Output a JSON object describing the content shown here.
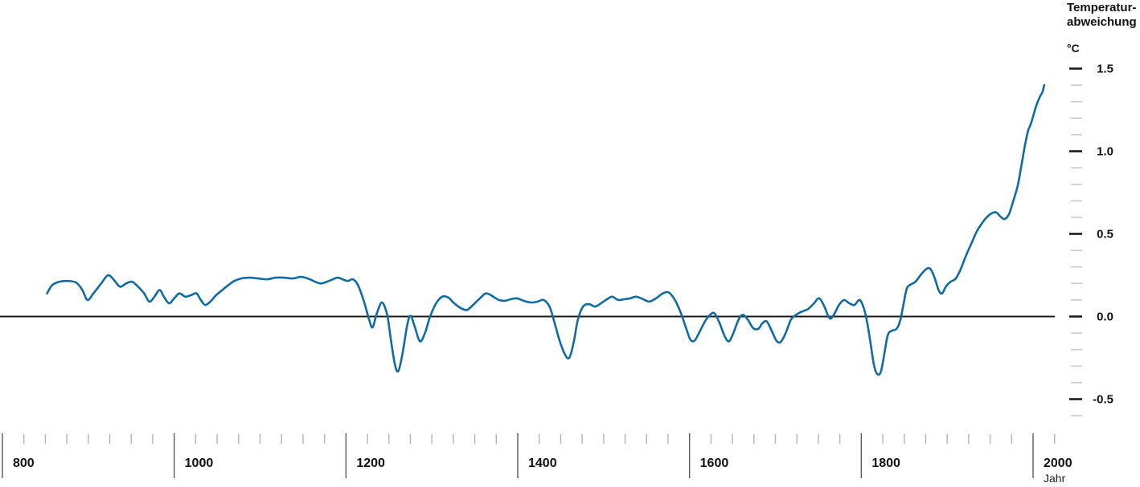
{
  "chart_data": {
    "type": "line",
    "title": "Temperaturabweichung",
    "title_lines": [
      "Temperatur-",
      "abweichung"
    ],
    "unit_label": "°C",
    "xlabel": "Jahr",
    "grid": "off",
    "legend": "none",
    "baseline_value": 0.0,
    "x_axis": {
      "range": [
        800,
        2025
      ],
      "major_ticks": [
        800,
        1000,
        1200,
        1400,
        1600,
        1800,
        2000
      ],
      "minor_step": 25
    },
    "y_axis": {
      "range": [
        -0.6,
        1.5
      ],
      "major_ticks": [
        {
          "value": 1.5,
          "label": "1.5"
        },
        {
          "value": 1.0,
          "label": "1.0"
        },
        {
          "value": 0.5,
          "label": "0.5"
        },
        {
          "value": 0.0,
          "label": "0.0"
        },
        {
          "value": -0.5,
          "label": "-0.5"
        }
      ],
      "minor_step": 0.1
    },
    "colors": {
      "line": "#0f6ba3",
      "baseline": "#1a1a1a",
      "y_major_tick": "#1a1a1a",
      "y_minor_tick": "#c9c9c9",
      "x_major_tick": "#595959",
      "x_minor_tick": "#b3b3b3",
      "label": "#111111"
    },
    "series": [
      {
        "name": "Temperaturabweichung",
        "points": [
          [
            852,
            0.14
          ],
          [
            858,
            0.19
          ],
          [
            866,
            0.21
          ],
          [
            876,
            0.215
          ],
          [
            886,
            0.205
          ],
          [
            893,
            0.16
          ],
          [
            899,
            0.1
          ],
          [
            906,
            0.14
          ],
          [
            915,
            0.2
          ],
          [
            923,
            0.25
          ],
          [
            930,
            0.22
          ],
          [
            937,
            0.18
          ],
          [
            944,
            0.2
          ],
          [
            951,
            0.21
          ],
          [
            958,
            0.18
          ],
          [
            965,
            0.14
          ],
          [
            971,
            0.09
          ],
          [
            977,
            0.12
          ],
          [
            983,
            0.16
          ],
          [
            988,
            0.12
          ],
          [
            994,
            0.08
          ],
          [
            1000,
            0.11
          ],
          [
            1006,
            0.14
          ],
          [
            1013,
            0.12
          ],
          [
            1020,
            0.13
          ],
          [
            1026,
            0.14
          ],
          [
            1031,
            0.1
          ],
          [
            1036,
            0.07
          ],
          [
            1042,
            0.09
          ],
          [
            1049,
            0.13
          ],
          [
            1056,
            0.16
          ],
          [
            1063,
            0.19
          ],
          [
            1070,
            0.215
          ],
          [
            1078,
            0.23
          ],
          [
            1088,
            0.235
          ],
          [
            1098,
            0.23
          ],
          [
            1108,
            0.225
          ],
          [
            1118,
            0.235
          ],
          [
            1128,
            0.235
          ],
          [
            1138,
            0.23
          ],
          [
            1148,
            0.24
          ],
          [
            1158,
            0.225
          ],
          [
            1170,
            0.2
          ],
          [
            1180,
            0.215
          ],
          [
            1190,
            0.235
          ],
          [
            1196,
            0.225
          ],
          [
            1202,
            0.215
          ],
          [
            1208,
            0.225
          ],
          [
            1214,
            0.19
          ],
          [
            1221,
            0.09
          ],
          [
            1227,
            -0.02
          ],
          [
            1231,
            -0.065
          ],
          [
            1236,
            0.02
          ],
          [
            1242,
            0.085
          ],
          [
            1248,
            0.01
          ],
          [
            1252,
            -0.13
          ],
          [
            1257,
            -0.29
          ],
          [
            1261,
            -0.33
          ],
          [
            1266,
            -0.22
          ],
          [
            1271,
            -0.06
          ],
          [
            1275,
            0.005
          ],
          [
            1280,
            -0.06
          ],
          [
            1286,
            -0.15
          ],
          [
            1292,
            -0.1
          ],
          [
            1298,
            0.0
          ],
          [
            1305,
            0.08
          ],
          [
            1312,
            0.12
          ],
          [
            1319,
            0.115
          ],
          [
            1326,
            0.08
          ],
          [
            1334,
            0.05
          ],
          [
            1341,
            0.04
          ],
          [
            1348,
            0.07
          ],
          [
            1356,
            0.11
          ],
          [
            1363,
            0.14
          ],
          [
            1370,
            0.125
          ],
          [
            1378,
            0.1
          ],
          [
            1385,
            0.095
          ],
          [
            1392,
            0.105
          ],
          [
            1399,
            0.11
          ],
          [
            1407,
            0.095
          ],
          [
            1415,
            0.085
          ],
          [
            1423,
            0.09
          ],
          [
            1430,
            0.1
          ],
          [
            1437,
            0.06
          ],
          [
            1443,
            -0.04
          ],
          [
            1449,
            -0.15
          ],
          [
            1455,
            -0.23
          ],
          [
            1460,
            -0.25
          ],
          [
            1465,
            -0.16
          ],
          [
            1470,
            -0.02
          ],
          [
            1476,
            0.06
          ],
          [
            1483,
            0.075
          ],
          [
            1490,
            0.06
          ],
          [
            1497,
            0.08
          ],
          [
            1504,
            0.105
          ],
          [
            1510,
            0.12
          ],
          [
            1517,
            0.1
          ],
          [
            1524,
            0.105
          ],
          [
            1531,
            0.11
          ],
          [
            1538,
            0.12
          ],
          [
            1546,
            0.105
          ],
          [
            1553,
            0.09
          ],
          [
            1561,
            0.11
          ],
          [
            1569,
            0.14
          ],
          [
            1576,
            0.145
          ],
          [
            1583,
            0.1
          ],
          [
            1590,
            0.02
          ],
          [
            1596,
            -0.07
          ],
          [
            1601,
            -0.14
          ],
          [
            1606,
            -0.145
          ],
          [
            1612,
            -0.09
          ],
          [
            1618,
            -0.03
          ],
          [
            1624,
            0.01
          ],
          [
            1629,
            0.02
          ],
          [
            1635,
            -0.04
          ],
          [
            1641,
            -0.12
          ],
          [
            1646,
            -0.15
          ],
          [
            1651,
            -0.1
          ],
          [
            1657,
            -0.02
          ],
          [
            1662,
            0.01
          ],
          [
            1668,
            -0.02
          ],
          [
            1674,
            -0.07
          ],
          [
            1680,
            -0.075
          ],
          [
            1685,
            -0.04
          ],
          [
            1690,
            -0.03
          ],
          [
            1696,
            -0.09
          ],
          [
            1701,
            -0.145
          ],
          [
            1706,
            -0.155
          ],
          [
            1712,
            -0.1
          ],
          [
            1718,
            -0.02
          ],
          [
            1724,
            0.01
          ],
          [
            1731,
            0.03
          ],
          [
            1738,
            0.045
          ],
          [
            1745,
            0.08
          ],
          [
            1751,
            0.11
          ],
          [
            1757,
            0.06
          ],
          [
            1763,
            -0.01
          ],
          [
            1768,
            0.01
          ],
          [
            1774,
            0.07
          ],
          [
            1780,
            0.1
          ],
          [
            1786,
            0.08
          ],
          [
            1792,
            0.07
          ],
          [
            1798,
            0.1
          ],
          [
            1803,
            0.05
          ],
          [
            1807,
            -0.04
          ],
          [
            1811,
            -0.17
          ],
          [
            1815,
            -0.3
          ],
          [
            1819,
            -0.35
          ],
          [
            1823,
            -0.33
          ],
          [
            1827,
            -0.22
          ],
          [
            1831,
            -0.11
          ],
          [
            1836,
            -0.085
          ],
          [
            1841,
            -0.075
          ],
          [
            1845,
            -0.03
          ],
          [
            1849,
            0.07
          ],
          [
            1853,
            0.17
          ],
          [
            1858,
            0.195
          ],
          [
            1863,
            0.21
          ],
          [
            1869,
            0.25
          ],
          [
            1875,
            0.285
          ],
          [
            1880,
            0.29
          ],
          [
            1885,
            0.24
          ],
          [
            1890,
            0.16
          ],
          [
            1894,
            0.14
          ],
          [
            1899,
            0.185
          ],
          [
            1904,
            0.21
          ],
          [
            1910,
            0.23
          ],
          [
            1916,
            0.29
          ],
          [
            1922,
            0.37
          ],
          [
            1928,
            0.44
          ],
          [
            1934,
            0.51
          ],
          [
            1940,
            0.56
          ],
          [
            1946,
            0.6
          ],
          [
            1952,
            0.625
          ],
          [
            1957,
            0.63
          ],
          [
            1962,
            0.605
          ],
          [
            1967,
            0.59
          ],
          [
            1972,
            0.62
          ],
          [
            1977,
            0.7
          ],
          [
            1982,
            0.79
          ],
          [
            1986,
            0.9
          ],
          [
            1990,
            1.02
          ],
          [
            1994,
            1.12
          ],
          [
            1997,
            1.16
          ],
          [
            2000,
            1.21
          ],
          [
            2004,
            1.28
          ],
          [
            2008,
            1.33
          ],
          [
            2011,
            1.36
          ],
          [
            2013,
            1.4
          ]
        ]
      }
    ]
  }
}
